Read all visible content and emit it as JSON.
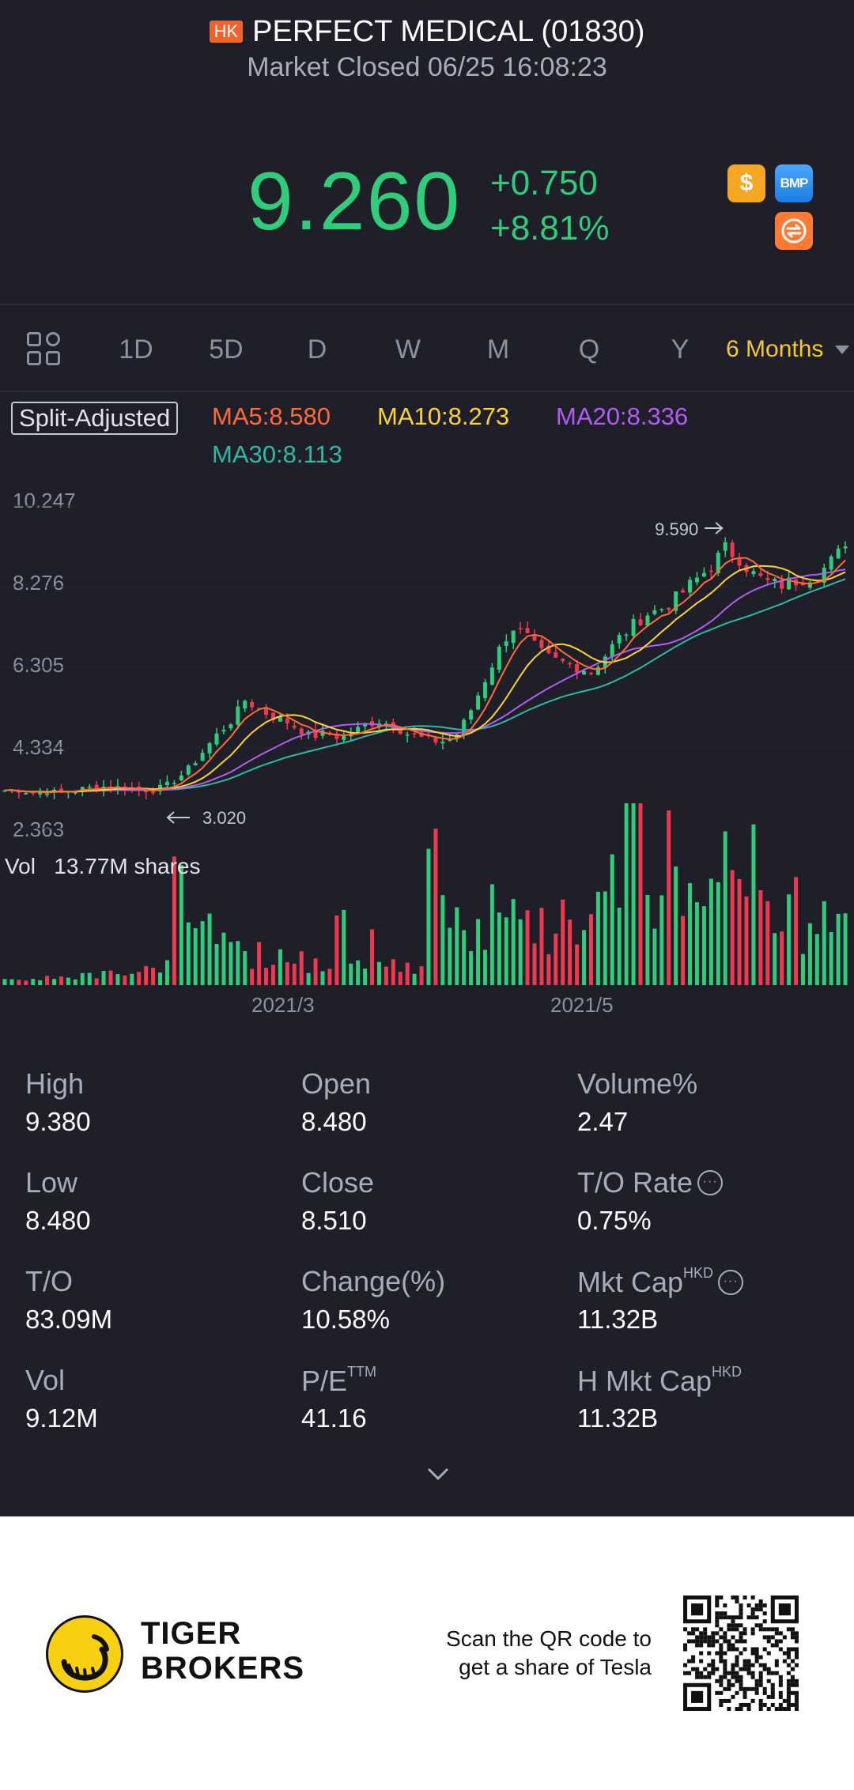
{
  "header": {
    "market_badge": "HK",
    "title": "PERFECT MEDICAL (01830)",
    "status": "Market Closed 06/25 16:08:23",
    "price": "9.260",
    "change": "+0.750",
    "change_pct": "+8.81%",
    "price_color": "#2fcc7a",
    "badges": [
      {
        "icon": "dollar-icon",
        "text": "$"
      },
      {
        "icon": "bmp-icon",
        "text": "BMP"
      },
      {
        "icon": "swap-icon",
        "text": ""
      }
    ]
  },
  "tabs": {
    "items": [
      "1D",
      "5D",
      "D",
      "W",
      "M",
      "Q",
      "Y"
    ],
    "active": "6 Months",
    "active_color": "#f4c92b"
  },
  "legend": {
    "adjust": "Split-Adjusted",
    "ma5": "MA5:8.580",
    "ma10": "MA10:8.273",
    "ma20": "MA20:8.336",
    "ma30": "MA30:8.113",
    "colors": {
      "ma5": "#ff6b35",
      "ma10": "#ffd233",
      "ma20": "#b35cf5",
      "ma30": "#2eb8a6"
    }
  },
  "chart_labels": {
    "y_ticks": [
      "10.247",
      "8.276",
      "6.305",
      "4.334",
      "2.363"
    ],
    "high_marker": "9.590",
    "low_marker": "3.020",
    "vol_label": "Vol",
    "vol_value": "13.77M shares",
    "x_ticks": [
      "2021/3",
      "2021/5"
    ]
  },
  "chart_data": {
    "type": "candlestick",
    "ylim": [
      2.363,
      10.247
    ],
    "y_ticks": [
      10.247,
      8.276,
      6.305,
      4.334,
      2.363
    ],
    "x_ticks": [
      "2021/3",
      "2021/5"
    ],
    "period": "6 Months",
    "price_max": 9.59,
    "price_min": 3.02,
    "last_volume": "13.77M shares",
    "up_color": "#2fcc7a",
    "down_color": "#f0384f",
    "close_path": [
      3.3,
      3.3,
      3.25,
      3.28,
      3.25,
      3.3,
      3.35,
      3.38,
      3.4,
      3.35,
      3.3,
      3.3,
      3.4,
      3.6,
      3.9,
      4.3,
      4.7,
      5.0,
      5.5,
      5.3,
      5.1,
      5.0,
      4.8,
      4.6,
      4.7,
      4.6,
      4.7,
      4.9,
      5.0,
      4.9,
      4.7,
      4.6,
      4.5,
      4.5,
      4.7,
      5.3,
      6.0,
      6.7,
      7.3,
      7.1,
      6.7,
      6.5,
      6.4,
      6.3,
      6.2,
      6.6,
      7.0,
      7.3,
      7.6,
      7.7,
      7.9,
      8.2,
      8.5,
      8.8,
      9.2,
      9.0,
      8.6,
      8.4,
      8.3,
      8.4,
      8.5,
      8.6,
      8.9,
      9.26
    ],
    "volume_path": [
      0.03,
      0.03,
      0.04,
      0.03,
      0.05,
      0.04,
      0.06,
      0.05,
      0.08,
      0.06,
      0.07,
      0.1,
      0.12,
      0.85,
      0.45,
      0.55,
      0.3,
      0.4,
      0.25,
      0.15,
      0.12,
      0.18,
      0.2,
      0.1,
      0.1,
      0.35,
      0.12,
      0.15,
      0.18,
      0.1,
      0.12,
      0.1,
      0.9,
      0.5,
      0.45,
      0.3,
      0.22,
      0.55,
      0.6,
      0.4,
      0.3,
      0.25,
      0.45,
      0.25,
      0.6,
      0.5,
      0.7,
      1.0,
      0.75,
      0.55,
      0.9,
      0.6,
      0.45,
      0.55,
      0.95,
      0.6,
      0.8,
      0.5,
      0.35,
      0.4,
      0.3,
      0.45,
      0.35,
      0.65
    ]
  },
  "stats": [
    {
      "label": "High",
      "value": "9.380"
    },
    {
      "label": "Open",
      "value": "8.480"
    },
    {
      "label": "Volume%",
      "value": "2.47"
    },
    {
      "label": "Low",
      "value": "8.480"
    },
    {
      "label": "Close",
      "value": "8.510"
    },
    {
      "label": "T/O Rate",
      "value": "0.75%"
    },
    {
      "label": "T/O",
      "value": "83.09M"
    },
    {
      "label": "Change(%)",
      "value": "10.58%"
    },
    {
      "label": "Mkt Cap",
      "sup": "HKD",
      "value": "11.32B"
    },
    {
      "label": "Vol",
      "value": "9.12M"
    },
    {
      "label": "P/E",
      "sup": "TTM",
      "value": "41.16"
    },
    {
      "label": "H Mkt Cap",
      "sup": "HKD",
      "value": "11.32B"
    }
  ],
  "footer": {
    "brand_line1": "TIGER",
    "brand_line2": "BROKERS",
    "scan_line1": "Scan the QR code to",
    "scan_line2": "get a share of Tesla"
  }
}
